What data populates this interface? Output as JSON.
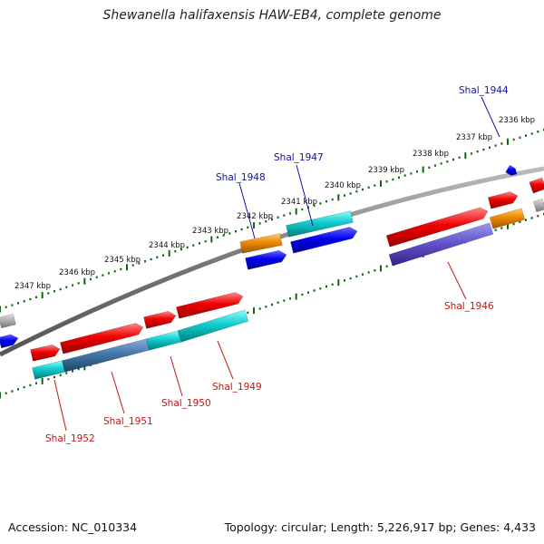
{
  "title": "Shewanella halifaxensis HAW-EB4, complete genome",
  "footer": {
    "accession": "Accession: NC_010334",
    "summary": "Topology: circular; Length: 5,226,917 bp; Genes: 4,433"
  },
  "scale_labels": [
    "2347 kbp",
    "2346 kbp",
    "2345 kbp",
    "2344 kbp",
    "2343 kbp",
    "2342 kbp",
    "2341 kbp",
    "2340 kbp",
    "2339 kbp",
    "2338 kbp",
    "2337 kbp",
    "2336 kbp"
  ],
  "gene_labels_top": [
    "Shal_1948",
    "Shal_1947",
    "Shal_1944"
  ],
  "gene_labels_bottom": [
    "Shal_1952",
    "Shal_1951",
    "Shal_1950",
    "Shal_1949",
    "Shal_1946"
  ],
  "colors": {
    "forward_cds": "#ee0000",
    "reverse_cds": "#0000ee",
    "cyan": "#11cccc",
    "orange": "#ee8800",
    "purple": "#6655cc",
    "steel": "#4477aa",
    "backbone": "#888888",
    "tick": "#116611",
    "label_top": "#1111aa",
    "label_bottom": "#cc1111"
  }
}
